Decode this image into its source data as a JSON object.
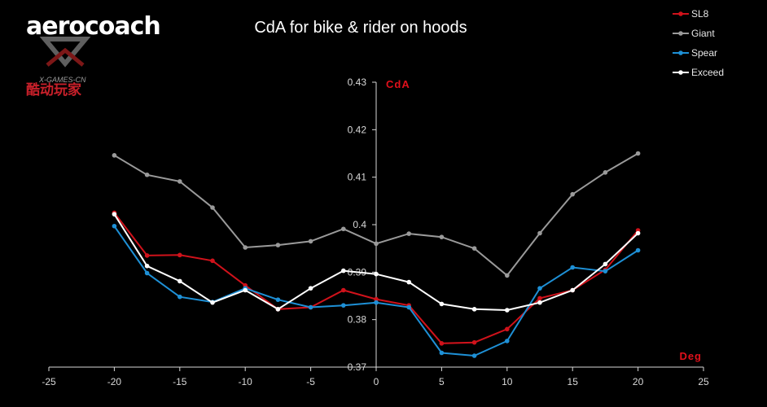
{
  "logo": {
    "wordmark": "aerocoach",
    "watermark_top": "X-GAMES-CN",
    "watermark_bottom": "酷动玩家"
  },
  "chart_data": {
    "type": "line",
    "title": "CdA for bike & rider on hoods",
    "xlabel": "Deg",
    "ylabel": "CdA",
    "xlim": [
      -25,
      25
    ],
    "ylim": [
      0.37,
      0.43
    ],
    "xticks": [
      -25,
      -20,
      -15,
      -10,
      -5,
      0,
      5,
      10,
      15,
      20,
      25
    ],
    "yticks": [
      0.37,
      0.38,
      0.39,
      0.4,
      0.41,
      0.42,
      0.43
    ],
    "ytick_labels": [
      "0.37",
      "0.38",
      "0.39",
      "0.4",
      "0.41",
      "0.42",
      "0.43"
    ],
    "grid": false,
    "legend_position": "top-right",
    "x": [
      -20,
      -17.5,
      -15,
      -12.5,
      -10,
      -7.5,
      -5,
      -2.5,
      0,
      2.5,
      5,
      7.5,
      10,
      12.5,
      15,
      17.5,
      20
    ],
    "series": [
      {
        "name": "SL8",
        "color": "#d0121b",
        "values": [
          0.4025,
          0.3935,
          0.3936,
          0.3924,
          0.3872,
          0.3822,
          0.3826,
          0.3862,
          0.3843,
          0.383,
          0.375,
          0.3752,
          0.378,
          0.3845,
          0.3862,
          0.3905,
          0.3988
        ]
      },
      {
        "name": "Giant",
        "color": "#9a9a9a",
        "values": [
          0.4146,
          0.4105,
          0.4091,
          0.4036,
          0.3952,
          0.3957,
          0.3965,
          0.3991,
          0.396,
          0.3981,
          0.3974,
          0.395,
          0.3893,
          0.3982,
          0.4064,
          0.411,
          0.415
        ]
      },
      {
        "name": "Spear",
        "color": "#1e90d6",
        "values": [
          0.3997,
          0.3898,
          0.3848,
          0.3837,
          0.3866,
          0.3842,
          0.3826,
          0.383,
          0.3836,
          0.3826,
          0.373,
          0.3724,
          0.3755,
          0.3866,
          0.391,
          0.3902,
          0.3946
        ]
      },
      {
        "name": "Exceed",
        "color": "#ffffff",
        "values": [
          0.4022,
          0.3913,
          0.3881,
          0.3836,
          0.3862,
          0.3822,
          0.3866,
          0.3903,
          0.3896,
          0.3879,
          0.3833,
          0.3822,
          0.382,
          0.3836,
          0.3862,
          0.3917,
          0.3982
        ]
      }
    ]
  }
}
